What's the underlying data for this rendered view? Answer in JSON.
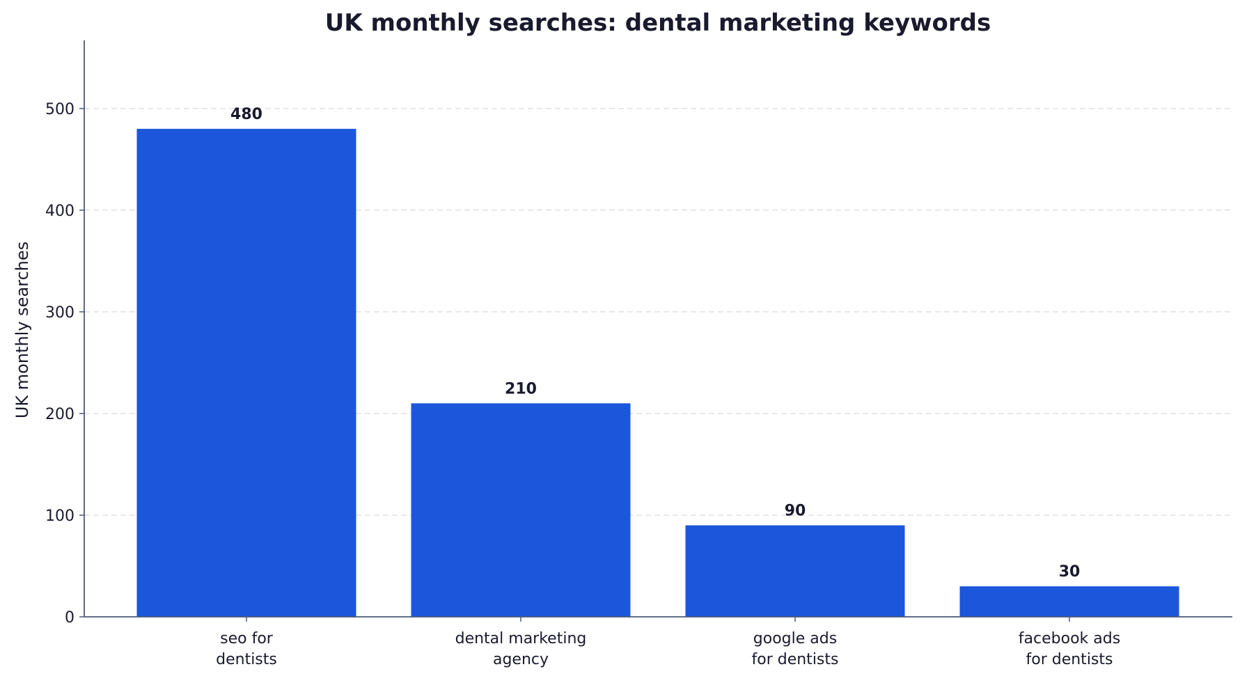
{
  "chart_data": {
    "type": "bar",
    "title": "UK monthly searches: dental marketing keywords",
    "xlabel": "",
    "ylabel": "UK monthly searches",
    "categories": [
      [
        "seo for",
        "dentists"
      ],
      [
        "dental marketing",
        "agency"
      ],
      [
        "google ads",
        "for dentists"
      ],
      [
        "facebook ads",
        "for dentists"
      ]
    ],
    "values": [
      480,
      210,
      90,
      30
    ],
    "data_labels": [
      "480",
      "210",
      "90",
      "30"
    ],
    "ylim": [
      0,
      567
    ],
    "yticks": [
      0,
      100,
      200,
      300,
      400,
      500
    ],
    "grid": "horizontal-dashed",
    "legend": "none",
    "colors": {
      "bar": "#1c56db",
      "axis": "#4a5a78",
      "grid": "#e0e0e0",
      "text": "#1a1a2e"
    }
  }
}
